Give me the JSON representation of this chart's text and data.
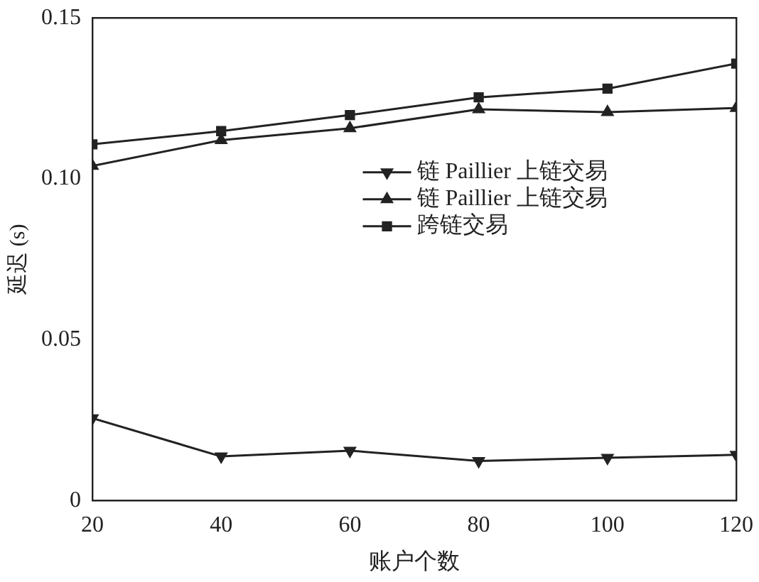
{
  "chart_data": {
    "type": "line",
    "xlabel": "账户个数",
    "ylabel": "延迟 (s)",
    "x": [
      20,
      40,
      60,
      80,
      100,
      120
    ],
    "xlim": [
      20,
      120
    ],
    "xticks": [
      20,
      40,
      60,
      80,
      100,
      120
    ],
    "ylim": [
      0,
      0.15
    ],
    "yticks": [
      {
        "value": 0,
        "label": "0"
      },
      {
        "value": 0.05,
        "label": "0.05"
      },
      {
        "value": 0.1,
        "label": "0.10"
      },
      {
        "value": 0.15,
        "label": "0.15"
      }
    ],
    "grid": false,
    "legend": "right",
    "line_style": "solid",
    "series": [
      {
        "name": "链 Paillier 上链交易",
        "color": "#222222",
        "marker": "triangle",
        "values": [
          0.0256,
          0.0137,
          0.0155,
          0.0123,
          0.0133,
          0.0142
        ]
      },
      {
        "name": "链 Paillier 上链交易",
        "color": "#222222",
        "marker": "triangle",
        "values": [
          0.104,
          0.112,
          0.1157,
          0.1216,
          0.1207,
          0.122
        ]
      },
      {
        "name": "跨链交易",
        "color": "#222222",
        "marker": "square",
        "values": [
          0.1107,
          0.1148,
          0.1198,
          0.1253,
          0.128,
          0.1358
        ]
      }
    ]
  }
}
